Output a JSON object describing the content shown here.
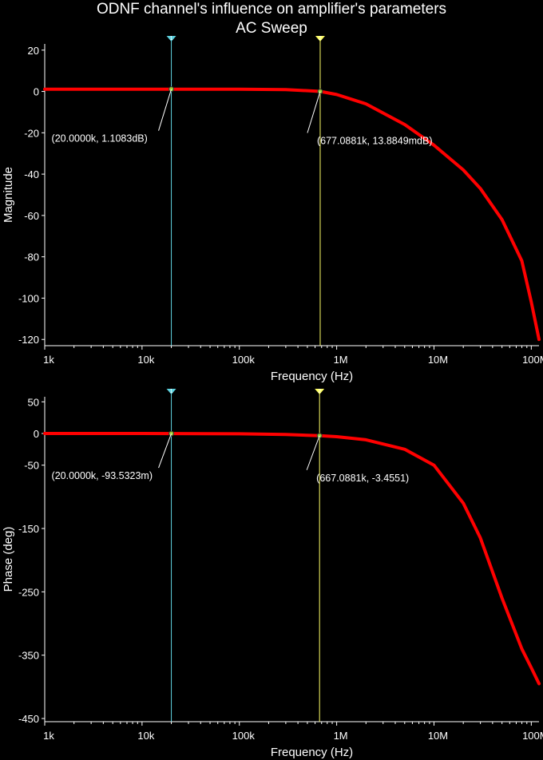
{
  "title": "ODNF channel's influence on amplifier's parameters",
  "subtitle": "AC Sweep",
  "chart_data": [
    {
      "type": "line",
      "ylabel": "Magnitude",
      "xlabel": "Frequency (Hz)",
      "xscale": "log",
      "xlim": [
        1000,
        120000000
      ],
      "ylim": [
        -123,
        23
      ],
      "grid": false,
      "xticks": [
        1000,
        10000,
        100000,
        1000000,
        10000000,
        100000000
      ],
      "xtick_labels": [
        "1k",
        "10k",
        "100k",
        "1M",
        "10M",
        "100M"
      ],
      "yticks": [
        20,
        0,
        -20,
        -40,
        -60,
        -80,
        -100,
        -120
      ],
      "ytick_labels": [
        "20",
        "0",
        "-20",
        "-40",
        "-60",
        "-80",
        "-100",
        "-120"
      ],
      "series": [
        {
          "color": "#ff0000",
          "x": [
            1000,
            10000,
            100000,
            300000,
            677088,
            1000000,
            2000000,
            5000000,
            10000000,
            20000000,
            30000000,
            50000000,
            80000000,
            100000000,
            120000000
          ],
          "y": [
            1.11,
            1.11,
            1.11,
            0.9,
            0.014,
            -1.5,
            -6,
            -16,
            -26,
            -38,
            -47,
            -62,
            -82,
            -102,
            -120
          ]
        }
      ],
      "cursors": [
        {
          "id": "1",
          "x": 20000,
          "color": "#5fd3e0",
          "label": "(20.0000k, 1.1083dB)",
          "y": 1.1083
        },
        {
          "id": "2",
          "x": 677088.1,
          "color": "#ffff66",
          "label": "(677.0881k, 13.8849mdB)",
          "y": 0.013885
        }
      ]
    },
    {
      "type": "line",
      "ylabel": "Phase (deg)",
      "xlabel": "Frequency (Hz)",
      "xscale": "log",
      "xlim": [
        1000,
        120000000
      ],
      "ylim": [
        -455,
        58
      ],
      "grid": false,
      "xticks": [
        1000,
        10000,
        100000,
        1000000,
        10000000,
        100000000
      ],
      "xtick_labels": [
        "1k",
        "10k",
        "100k",
        "1M",
        "10M",
        "100M"
      ],
      "yticks": [
        50,
        0,
        -50,
        -150,
        -250,
        -350,
        -450
      ],
      "ytick_labels": [
        "50",
        "0",
        "-50",
        "-150",
        "-250",
        "-350",
        "-450"
      ],
      "series": [
        {
          "color": "#ff0000",
          "x": [
            1000,
            10000,
            100000,
            300000,
            667088,
            1000000,
            2000000,
            5000000,
            10000000,
            20000000,
            30000000,
            50000000,
            80000000,
            100000000,
            120000000
          ],
          "y": [
            0,
            0,
            -0.5,
            -1.5,
            -3.46,
            -5,
            -10,
            -25,
            -50,
            -110,
            -165,
            -260,
            -340,
            -370,
            -395
          ]
        }
      ],
      "cursors": [
        {
          "id": "1",
          "x": 20000,
          "color": "#5fd3e0",
          "label": "(20.0000k, -93.5323m)",
          "y": -0.0935
        },
        {
          "id": "2",
          "x": 667088.1,
          "color": "#ffff66",
          "label": "(667.0881k, -3.4551)",
          "y": -3.4551
        }
      ]
    }
  ]
}
